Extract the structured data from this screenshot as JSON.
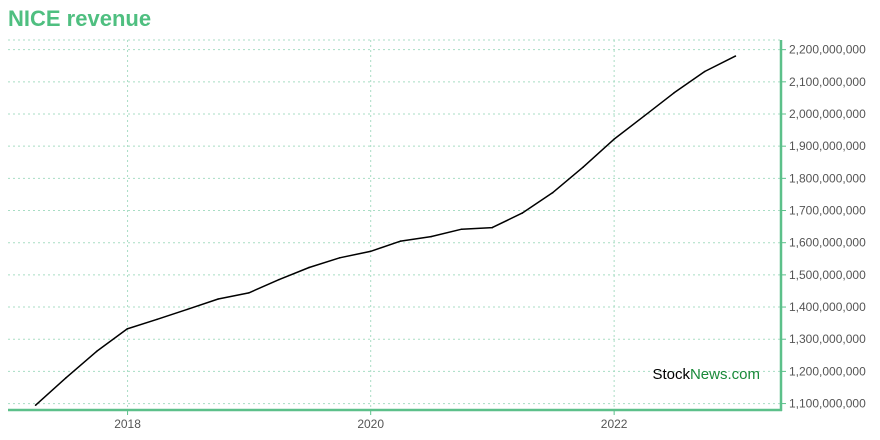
{
  "chart_data": {
    "type": "line",
    "title": "NICE revenue",
    "xlabel": "",
    "ylabel": "",
    "x_range": [
      "2017-01-07",
      "2023-05-17"
    ],
    "ylim": [
      1080000000,
      2230000000
    ],
    "x_ticks": [
      {
        "date": "2018-01-01",
        "label": "2018"
      },
      {
        "date": "2020-01-01",
        "label": "2020"
      },
      {
        "date": "2022-01-01",
        "label": "2022"
      }
    ],
    "y_ticks": [
      {
        "value": 1100000000,
        "label": "1,100,000,000"
      },
      {
        "value": 1200000000,
        "label": "1,200,000,000"
      },
      {
        "value": 1300000000,
        "label": "1,300,000,000"
      },
      {
        "value": 1400000000,
        "label": "1,400,000,000"
      },
      {
        "value": 1500000000,
        "label": "1,500,000,000"
      },
      {
        "value": 1600000000,
        "label": "1,600,000,000"
      },
      {
        "value": 1700000000,
        "label": "1,700,000,000"
      },
      {
        "value": 1800000000,
        "label": "1,800,000,000"
      },
      {
        "value": 1900000000,
        "label": "1,900,000,000"
      },
      {
        "value": 2000000000,
        "label": "2,000,000,000"
      },
      {
        "value": 2100000000,
        "label": "2,100,000,000"
      },
      {
        "value": 2200000000,
        "label": "2,200,000,000"
      }
    ],
    "grid": true,
    "y_axis_position": "right",
    "series": [
      {
        "color": "#000000",
        "points": [
          {
            "x": "2017-03-31",
            "y": 1095000000
          },
          {
            "x": "2017-06-30",
            "y": 1180000000
          },
          {
            "x": "2017-09-30",
            "y": 1262000000
          },
          {
            "x": "2017-12-31",
            "y": 1332000000
          },
          {
            "x": "2018-03-31",
            "y": 1362000000
          },
          {
            "x": "2018-06-30",
            "y": 1393000000
          },
          {
            "x": "2018-09-30",
            "y": 1425000000
          },
          {
            "x": "2018-12-31",
            "y": 1444000000
          },
          {
            "x": "2019-03-31",
            "y": 1485000000
          },
          {
            "x": "2019-06-30",
            "y": 1523000000
          },
          {
            "x": "2019-09-30",
            "y": 1553000000
          },
          {
            "x": "2019-12-31",
            "y": 1573000000
          },
          {
            "x": "2020-03-31",
            "y": 1605000000
          },
          {
            "x": "2020-06-30",
            "y": 1619000000
          },
          {
            "x": "2020-09-30",
            "y": 1642000000
          },
          {
            "x": "2020-12-31",
            "y": 1647000000
          },
          {
            "x": "2021-03-31",
            "y": 1692000000
          },
          {
            "x": "2021-06-30",
            "y": 1755000000
          },
          {
            "x": "2021-09-30",
            "y": 1835000000
          },
          {
            "x": "2021-12-31",
            "y": 1921000000
          },
          {
            "x": "2022-03-31",
            "y": 1993000000
          },
          {
            "x": "2022-06-30",
            "y": 2066000000
          },
          {
            "x": "2022-09-30",
            "y": 2132000000
          },
          {
            "x": "2022-12-31",
            "y": 2180000000
          }
        ]
      }
    ],
    "colors": {
      "title": "#4fbf80",
      "axis": "#5cc08a",
      "grid": "#a8ddc4",
      "line": "#000000",
      "watermark_dark": "#000000",
      "watermark_green": "#1a8a3a"
    },
    "watermark": {
      "part1": "Stock",
      "part2": "News",
      "part3": ".com",
      "position": "bottom-right"
    }
  }
}
